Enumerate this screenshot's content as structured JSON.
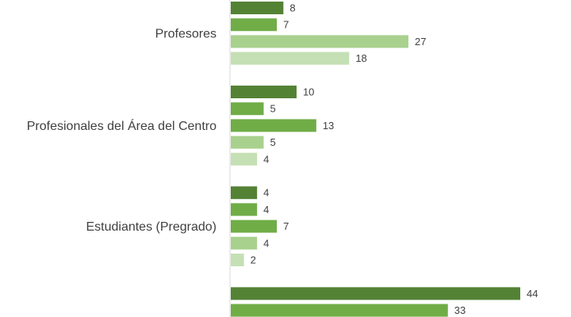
{
  "chart_data": {
    "type": "bar",
    "orientation": "horizontal",
    "categories": [
      "Profesores",
      "Profesionales del Área del Centro",
      "Estudiantes (Pregrado)",
      ""
    ],
    "series": [
      {
        "values": [
          8,
          10,
          4,
          44
        ],
        "color": "#548235"
      },
      {
        "values": [
          7,
          5,
          4,
          33
        ],
        "color": "#70ad47"
      },
      {
        "values": [
          27,
          13,
          7,
          null
        ],
        "color": "#70ad47"
      },
      {
        "values": [
          18,
          5,
          4,
          null
        ],
        "color": "#a9d18e"
      },
      {
        "values": [
          null,
          4,
          2,
          null
        ],
        "color": "#c5e0b4"
      }
    ],
    "bars": [
      {
        "category": "Profesores",
        "value": 8,
        "color": "#548235"
      },
      {
        "category": "Profesores",
        "value": 7,
        "color": "#70ad47"
      },
      {
        "category": "Profesores",
        "value": 27,
        "color": "#a9d18e"
      },
      {
        "category": "Profesores",
        "value": 18,
        "color": "#c5e0b4"
      },
      {
        "category": "Profesionales del Área del Centro",
        "value": 10,
        "color": "#548235"
      },
      {
        "category": "Profesionales del Área del Centro",
        "value": 5,
        "color": "#70ad47"
      },
      {
        "category": "Profesionales del Área del Centro",
        "value": 13,
        "color": "#70ad47"
      },
      {
        "category": "Profesionales del Área del Centro",
        "value": 5,
        "color": "#a9d18e"
      },
      {
        "category": "Profesionales del Área del Centro",
        "value": 4,
        "color": "#c5e0b4"
      },
      {
        "category": "Estudiantes (Pregrado)",
        "value": 4,
        "color": "#548235"
      },
      {
        "category": "Estudiantes (Pregrado)",
        "value": 4,
        "color": "#70ad47"
      },
      {
        "category": "Estudiantes (Pregrado)",
        "value": 7,
        "color": "#70ad47"
      },
      {
        "category": "Estudiantes (Pregrado)",
        "value": 4,
        "color": "#a9d18e"
      },
      {
        "category": "Estudiantes (Pregrado)",
        "value": 2,
        "color": "#c5e0b4"
      },
      {
        "category": "",
        "value": 44,
        "color": "#548235"
      },
      {
        "category": "",
        "value": 33,
        "color": "#70ad47"
      }
    ],
    "xlim": [
      0,
      44
    ],
    "grid": false,
    "legend": "none",
    "title": "",
    "xlabel": "",
    "ylabel": ""
  }
}
